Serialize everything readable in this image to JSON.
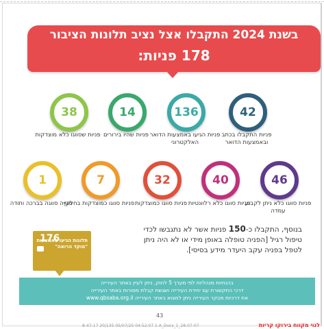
{
  "banner": {
    "line1": "בשנת 2024 התקבלו אצל נציב תלונות הציבור",
    "line2": "178 פניות:"
  },
  "colors": {
    "banner": "#e84b4d",
    "navy": "#2e5f7c",
    "teal": "#3aa9a8",
    "green": "#3aa86d",
    "lime": "#8ec54a",
    "purple": "#5f3a8a",
    "magenta": "#c0307b",
    "red": "#e0503a",
    "orange": "#f09a2a",
    "yellow": "#eac02a",
    "gold": "#cca52f",
    "strip": "#5cbfba"
  },
  "row1": [
    {
      "value": "42",
      "label": "פניות התקבלו בכתב ובאמצעות הדואר"
    },
    {
      "value": "136",
      "label": "פניות הגיעו באמצעות הדואר האלקטרוני"
    },
    {
      "value": "14",
      "label": "פניות שהיו בירורים"
    },
    {
      "value": "38",
      "label": "פניות שסווגו כלא מוצדקות"
    }
  ],
  "row2": [
    {
      "value": "46",
      "label": "פניות סווגו כלא ניתן לקבוע עמדה"
    },
    {
      "value": "40",
      "label": "פניות סווגו כלא רלוונטיות"
    },
    {
      "value": "32",
      "label": "פניות סווגו כמוצדקות"
    },
    {
      "value": "7",
      "label": "פניות סווגו כמוצדקות בחלקן"
    },
    {
      "value": "1",
      "label": "פנייה סווגה בברכה ותודה"
    }
  ],
  "paragraph": {
    "prefix": "בנוסף, התקבלו כ-",
    "count": "150",
    "rest": " פניות אשר לא נתגבשו לכדי טיפול רגיל [הפניה טופלה באופן מידי או לא היה ניתן לטפל בפניה עקב היעדר מידע בסיסי]."
  },
  "bubble": {
    "number": "176",
    "text": "תלונות הגיעו באמצעות \"מוקד הרואה\""
  },
  "info": {
    "line1": "בהנחיות מנהליות לפי מערך 5 לחוק, ניתן לעיין באתר העירייה",
    "line2": "דרכי התקשורת עם יחידת העירייה ושגשת קבלת מסורות באתר העירייה",
    "line3": "את דרכיות מבקר העירייה ניתן למצוא באתר העירייה www.qbsaba.org.il"
  },
  "page_number": "43",
  "footer": {
    "small": "8-47-17  20/135  05/07/25  04:52:07  1  A_Docs_1_28-07-07",
    "red": "לנוי מקווח בירוקו קריות"
  }
}
